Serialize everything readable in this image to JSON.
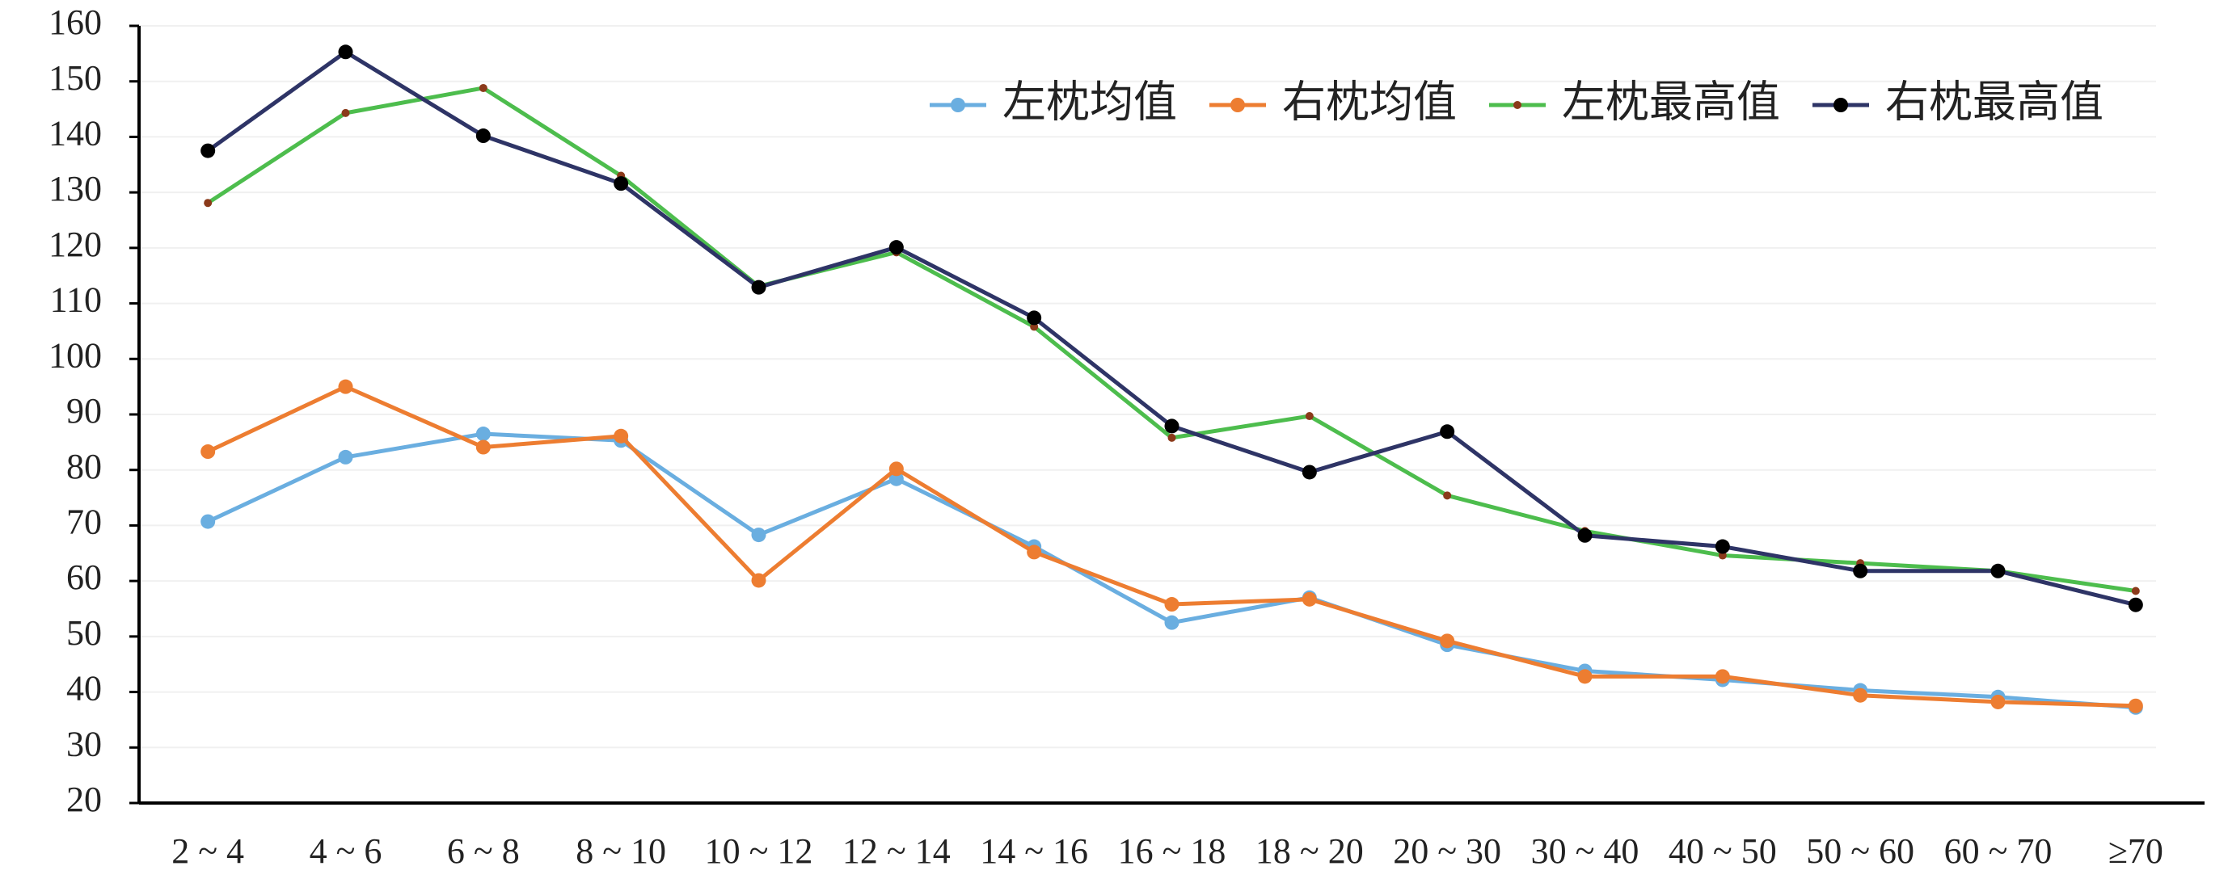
{
  "chart_data": {
    "type": "line",
    "categories": [
      "2 ~ 4",
      "4 ~ 6",
      "6 ~ 8",
      "8 ~ 10",
      "10 ~ 12",
      "12 ~ 14",
      "14 ~ 16",
      "16 ~ 18",
      "18 ~ 20",
      "20 ~ 30",
      "30 ~ 40",
      "40 ~ 50",
      "50 ~ 60",
      "60 ~ 70",
      "≥70"
    ],
    "series": [
      {
        "name": "左枕均值",
        "color": "#6aaee0",
        "marker_color": "#6aaee0",
        "values": [
          70.7,
          82.3,
          86.5,
          85.3,
          68.3,
          78.4,
          66.2,
          52.5,
          57.0,
          48.5,
          43.8,
          42.2,
          40.3,
          39.1,
          37.2
        ]
      },
      {
        "name": "右枕均值",
        "color": "#ed7d31",
        "marker_color": "#ed7d31",
        "values": [
          83.3,
          95.0,
          84.1,
          86.1,
          60.1,
          80.2,
          65.2,
          55.8,
          56.7,
          49.2,
          42.8,
          42.8,
          39.4,
          38.2,
          37.5
        ]
      },
      {
        "name": "左枕最高值",
        "color": "#4dbd4d",
        "marker_color": "#8b3a1a",
        "values": [
          128.1,
          144.3,
          148.8,
          133.0,
          113.1,
          119.2,
          105.8,
          85.8,
          89.7,
          75.4,
          69.0,
          64.6,
          63.2,
          61.8,
          58.2
        ]
      },
      {
        "name": "右枕最高值",
        "color": "#2e3466",
        "marker_color": "#000000",
        "values": [
          137.5,
          155.3,
          140.2,
          131.6,
          112.9,
          120.1,
          107.4,
          87.9,
          79.6,
          86.9,
          68.2,
          66.2,
          61.8,
          61.8,
          55.7
        ]
      }
    ],
    "ylim": [
      20,
      160
    ],
    "yticks": [
      20,
      30,
      40,
      50,
      60,
      70,
      80,
      90,
      100,
      110,
      120,
      130,
      140,
      150,
      160
    ],
    "grid": true,
    "legend": "top-right"
  }
}
